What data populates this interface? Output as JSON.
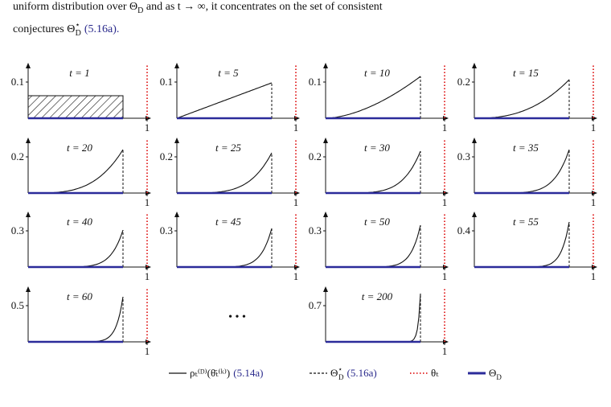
{
  "intro": {
    "line1_a": "uniform distribution over Θ",
    "line1_sub": "D",
    "line1_b": " and as t → ∞, it concentrates on the set of consistent",
    "line2_a": "conjectures Θ",
    "line2_sup": "⋆",
    "line2_sub": "D",
    "line2_ref": "(5.16a)."
  },
  "panels": [
    {
      "title": "t = 1",
      "ytick": "0.1",
      "xtick": "1"
    },
    {
      "title": "t = 5",
      "ytick": "0.1",
      "xtick": "1"
    },
    {
      "title": "t = 10",
      "ytick": "0.1",
      "xtick": "1"
    },
    {
      "title": "t = 15",
      "ytick": "0.2",
      "xtick": "1"
    },
    {
      "title": "t = 20",
      "ytick": "0.2",
      "xtick": "1"
    },
    {
      "title": "t = 25",
      "ytick": "0.2",
      "xtick": "1"
    },
    {
      "title": "t = 30",
      "ytick": "0.2",
      "xtick": "1"
    },
    {
      "title": "t = 35",
      "ytick": "0.3",
      "xtick": "1"
    },
    {
      "title": "t = 40",
      "ytick": "0.3",
      "xtick": "1"
    },
    {
      "title": "t = 45",
      "ytick": "0.3",
      "xtick": "1"
    },
    {
      "title": "t = 50",
      "ytick": "0.3",
      "xtick": "1"
    },
    {
      "title": "t = 55",
      "ytick": "0.4",
      "xtick": "1"
    },
    {
      "title": "t = 60",
      "ytick": "0.5",
      "xtick": "1"
    },
    {
      "title": "t = 200",
      "ytick": "0.7",
      "xtick": "1"
    }
  ],
  "ellipsis": "• • •",
  "legend": [
    {
      "symbol": "ρₜ⁽ᴰ⁾(θ̄ₜ⁽ᵏ⁾)",
      "ref": "(5.14a)"
    },
    {
      "symbol": "Θ",
      "sup": "⋆",
      "sub": "D",
      "ref": "(5.16a)"
    },
    {
      "symbol": "θₜ"
    },
    {
      "symbol": "Θ",
      "sub": "D"
    }
  ]
}
